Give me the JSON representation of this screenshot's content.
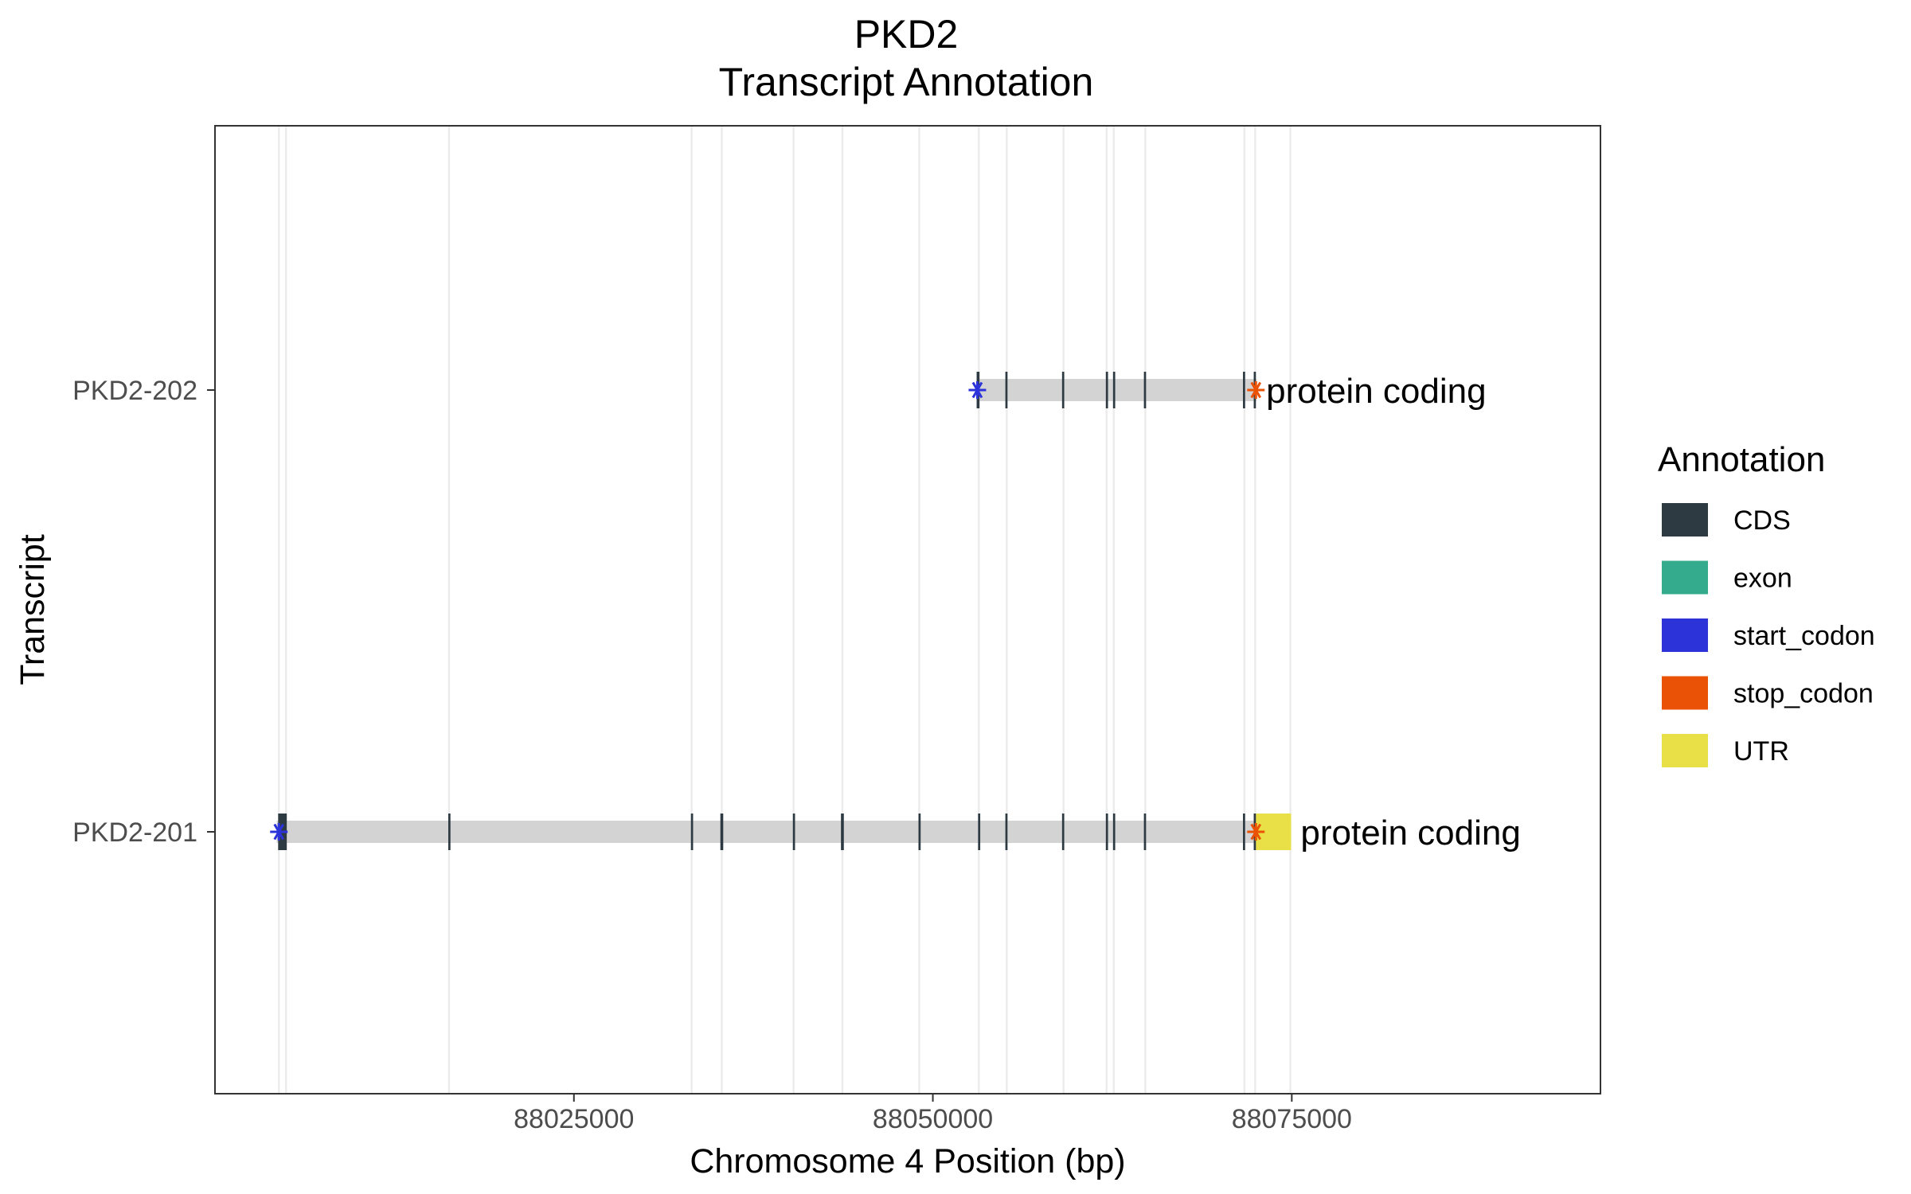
{
  "chart_data": {
    "type": "transcript-annotation",
    "title": "PKD2",
    "subtitle": "Transcript Annotation",
    "xlabel": "Chromosome 4 Position (bp)",
    "ylabel": "Transcript",
    "xlim": [
      88000000,
      88096500
    ],
    "x_ticks": [
      88025000,
      88050000,
      88075000
    ],
    "x_tick_labels": [
      "88025000",
      "88050000",
      "88075000"
    ],
    "grid": "vertical lines at exon boundaries",
    "vertical_guides": [
      88004450,
      88004950,
      88016300,
      88033200,
      88035300,
      88040300,
      88043700,
      88049050,
      88053200,
      88055150,
      88059100,
      88062100,
      88062600,
      88064800,
      88071700,
      88072450,
      88074900
    ],
    "legend": {
      "title": "Annotation",
      "placement": "right",
      "entries": [
        {
          "label": "CDS",
          "color": "#2d3a42"
        },
        {
          "label": "exon",
          "color": "#34ab8d"
        },
        {
          "label": "start_codon",
          "color": "#2b33d9"
        },
        {
          "label": "stop_codon",
          "color": "#ea5206"
        },
        {
          "label": "UTR",
          "color": "#e8e046"
        }
      ]
    },
    "intron_color": "#d3d3d3",
    "transcripts": [
      {
        "name": "PKD2-202",
        "biotype_label": "protein coding",
        "start": 88053050,
        "end": 88072550,
        "cds": [
          {
            "start": 88053050,
            "end": 88053250
          },
          {
            "start": 88055050,
            "end": 88055200
          },
          {
            "start": 88059000,
            "end": 88059150
          },
          {
            "start": 88062050,
            "end": 88062200
          },
          {
            "start": 88062550,
            "end": 88062700
          },
          {
            "start": 88064700,
            "end": 88064850
          },
          {
            "start": 88071600,
            "end": 88071750
          },
          {
            "start": 88072350,
            "end": 88072500
          }
        ],
        "utr": [],
        "start_codon": 88053100,
        "stop_codon": 88072500
      },
      {
        "name": "PKD2-201",
        "biotype_label": "protein coding",
        "start": 88004300,
        "end": 88074950,
        "cds": [
          {
            "start": 88004400,
            "end": 88005000
          },
          {
            "start": 88016250,
            "end": 88016400
          },
          {
            "start": 88033150,
            "end": 88033300
          },
          {
            "start": 88035200,
            "end": 88035400
          },
          {
            "start": 88040250,
            "end": 88040400
          },
          {
            "start": 88043600,
            "end": 88043800
          },
          {
            "start": 88049000,
            "end": 88049150
          },
          {
            "start": 88053150,
            "end": 88053300
          },
          {
            "start": 88055050,
            "end": 88055200
          },
          {
            "start": 88059000,
            "end": 88059150
          },
          {
            "start": 88062050,
            "end": 88062200
          },
          {
            "start": 88062550,
            "end": 88062700
          },
          {
            "start": 88064700,
            "end": 88064850
          },
          {
            "start": 88071600,
            "end": 88071750
          },
          {
            "start": 88072350,
            "end": 88072500
          }
        ],
        "utr": [
          {
            "start": 88072500,
            "end": 88074950
          }
        ],
        "start_codon": 88004450,
        "stop_codon": 88072500
      }
    ]
  }
}
